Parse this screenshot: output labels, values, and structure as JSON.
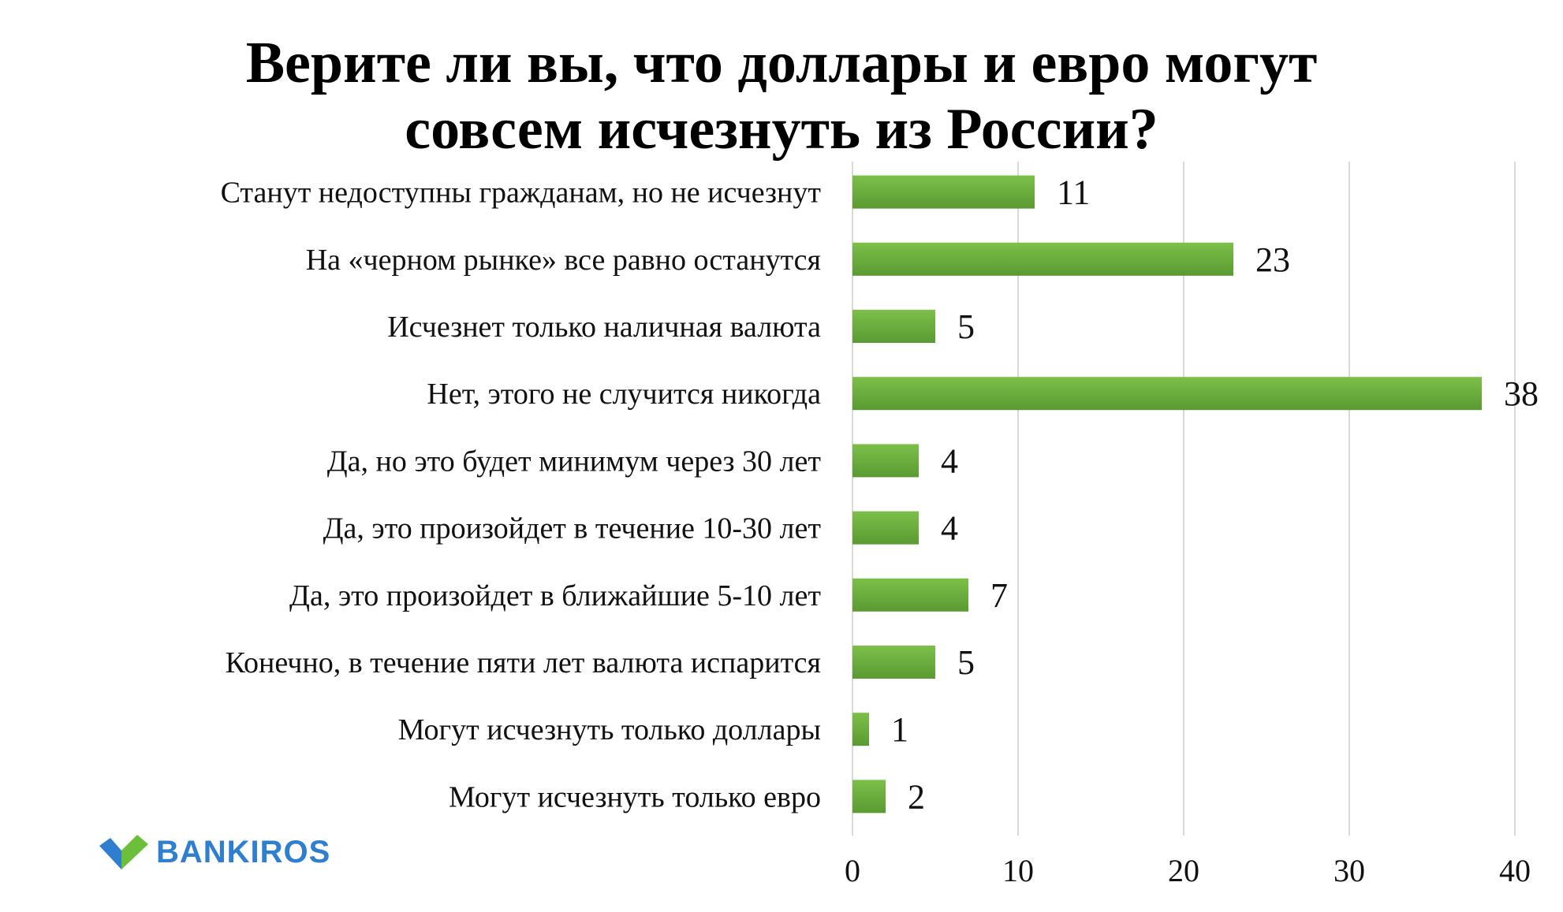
{
  "title_lines": [
    "Верите ли вы, что доллары и евро могут",
    "совсем исчезнуть из России?"
  ],
  "logo": {
    "text": "BANKIROS",
    "icon": "bankiros-check-logo-icon",
    "color_blue": "#2f7fd0",
    "color_green": "#6bbf3a"
  },
  "chart_data": {
    "type": "bar",
    "orientation": "horizontal",
    "categories": [
      "Станут недоступны гражданам, но не исчезнут",
      "На «черном рынке» все равно останутся",
      "Исчезнет только наличная валюта",
      "Нет, этого не случится никогда",
      "Да, но это будет минимум через 30 лет",
      "Да, это произойдет в течение 10-30 лет",
      "Да, это произойдет в ближайшие 5-10 лет",
      "Конечно, в течение пяти лет валюта испарится",
      "Могут исчезнуть только доллары",
      "Могут исчезнуть только евро"
    ],
    "values": [
      11,
      23,
      5,
      38,
      4,
      4,
      7,
      5,
      1,
      2
    ],
    "xlim": [
      0,
      40
    ],
    "xticks": [
      0,
      10,
      20,
      30,
      40
    ],
    "grid": true,
    "bar_color": "#6aab3c",
    "data_labels": true
  }
}
